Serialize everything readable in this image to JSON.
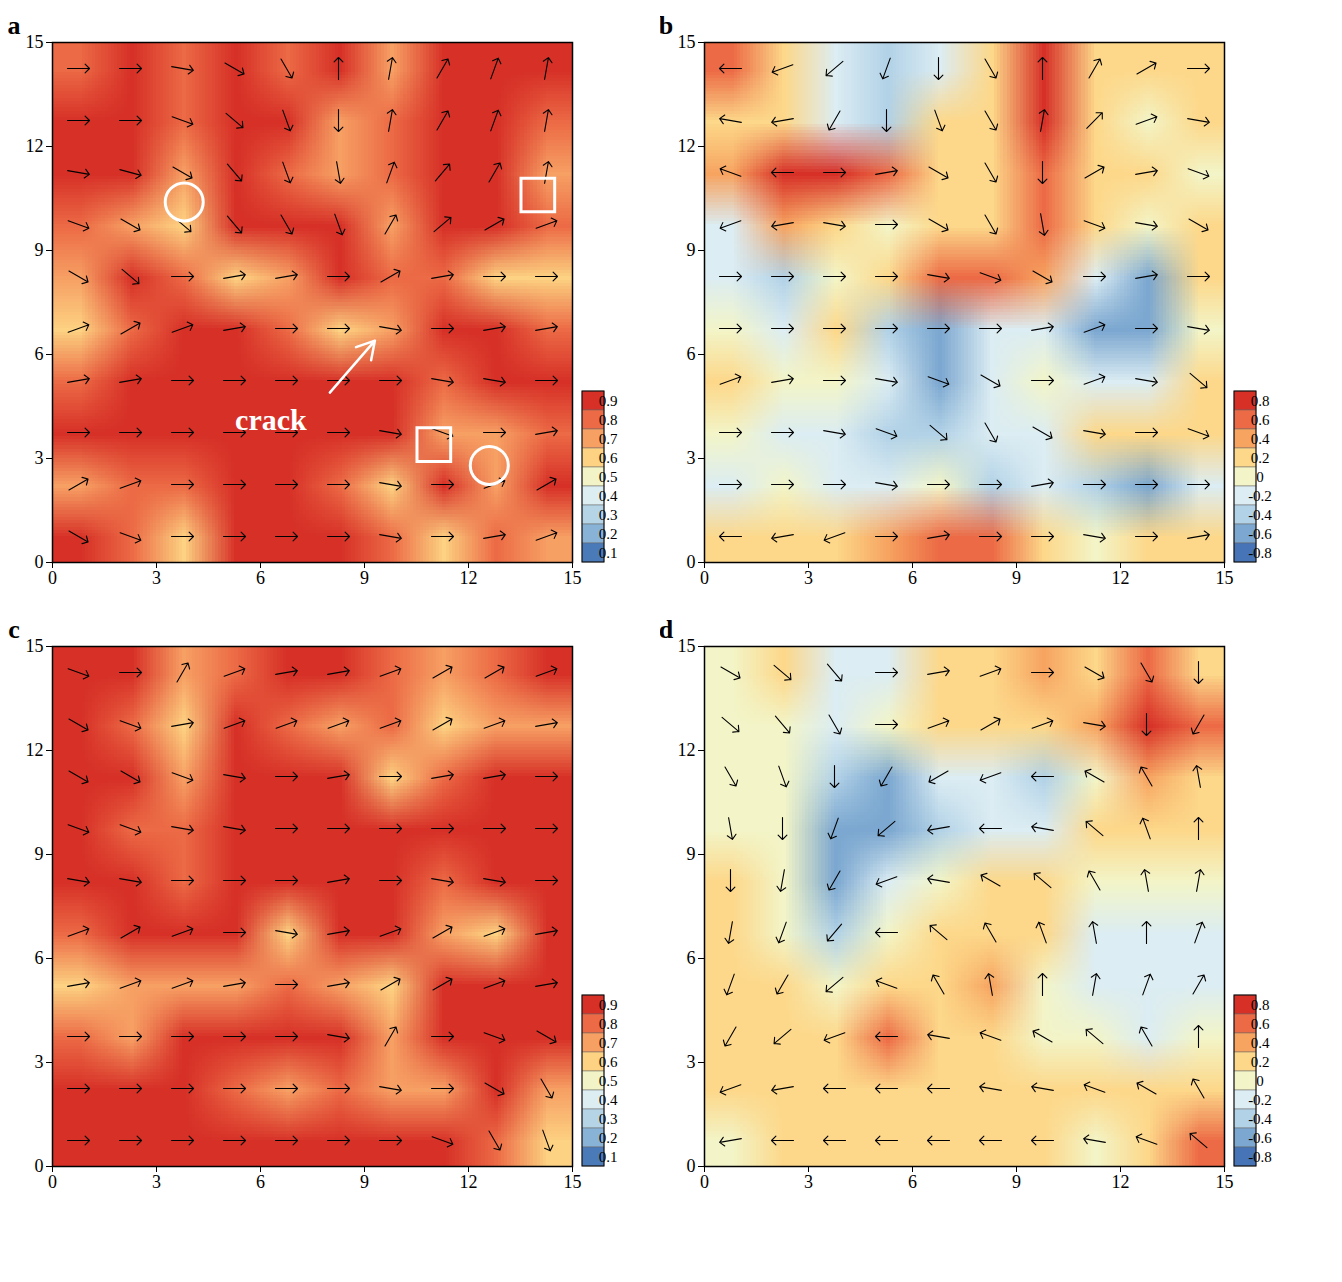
{
  "chart_data": [
    {
      "type": "heatmap",
      "title": "a",
      "xlim": [
        0,
        15
      ],
      "ylim": [
        0,
        15
      ],
      "xticks": [
        0,
        3,
        6,
        9,
        12,
        15
      ],
      "yticks": [
        0,
        3,
        6,
        9,
        12,
        15
      ],
      "colorbar": {
        "ticks": [
          0.1,
          0.2,
          0.3,
          0.4,
          0.5,
          0.6,
          0.7,
          0.8,
          0.9
        ],
        "colors": [
          "#4a7ab8",
          "#89b3d6",
          "#b5d4e6",
          "#ddeef2",
          "#f2f3c6",
          "#fdd282",
          "#f7a064",
          "#ec6a45",
          "#d73027"
        ]
      },
      "cells": [
        [
          0.8,
          0.95,
          0.75,
          0.9,
          0.75,
          0.9,
          0.7,
          0.95,
          0.9,
          0.9
        ],
        [
          0.95,
          0.9,
          0.85,
          0.95,
          0.95,
          0.7,
          0.8,
          0.95,
          0.95,
          0.8
        ],
        [
          0.9,
          0.95,
          0.7,
          0.95,
          0.8,
          0.7,
          0.75,
          0.95,
          0.9,
          0.65
        ],
        [
          0.8,
          0.65,
          0.6,
          0.9,
          0.9,
          0.95,
          0.7,
          0.9,
          0.95,
          0.75
        ],
        [
          0.7,
          0.9,
          0.75,
          0.6,
          0.7,
          0.95,
          0.8,
          0.75,
          0.6,
          0.6
        ],
        [
          0.6,
          0.85,
          0.95,
          0.95,
          0.75,
          0.55,
          0.7,
          0.95,
          0.9,
          0.85
        ],
        [
          0.8,
          0.95,
          0.95,
          0.95,
          0.95,
          0.95,
          0.95,
          0.8,
          0.95,
          0.9
        ],
        [
          0.95,
          0.95,
          0.95,
          0.9,
          0.95,
          0.95,
          0.95,
          0.7,
          0.65,
          0.8
        ],
        [
          0.7,
          0.85,
          0.75,
          0.95,
          0.95,
          0.8,
          0.6,
          0.9,
          0.7,
          0.9
        ],
        [
          0.95,
          0.8,
          0.6,
          0.95,
          0.9,
          0.95,
          0.75,
          0.6,
          0.85,
          0.7
        ]
      ],
      "vector_angles": [
        [
          0,
          0,
          350,
          330,
          300,
          90,
          80,
          60,
          70,
          80
        ],
        [
          0,
          0,
          340,
          320,
          290,
          270,
          80,
          60,
          70,
          80
        ],
        [
          350,
          345,
          330,
          310,
          290,
          280,
          70,
          50,
          60,
          80
        ],
        [
          340,
          330,
          320,
          310,
          300,
          290,
          60,
          40,
          30,
          20
        ],
        [
          330,
          320,
          0,
          10,
          10,
          0,
          30,
          10,
          0,
          0
        ],
        [
          20,
          30,
          20,
          10,
          0,
          0,
          350,
          0,
          10,
          10
        ],
        [
          10,
          10,
          0,
          0,
          0,
          0,
          0,
          350,
          350,
          0
        ],
        [
          0,
          0,
          0,
          0,
          0,
          0,
          350,
          340,
          0,
          10
        ],
        [
          30,
          20,
          0,
          0,
          0,
          0,
          350,
          0,
          20,
          30
        ],
        [
          330,
          340,
          0,
          0,
          0,
          0,
          350,
          0,
          10,
          20
        ]
      ],
      "annotations": [
        {
          "type": "circle",
          "x": 3.8,
          "y": 10.4
        },
        {
          "type": "circle",
          "x": 12.6,
          "y": 2.8
        },
        {
          "type": "square",
          "x": 14.0,
          "y": 10.6
        },
        {
          "type": "square",
          "x": 11.0,
          "y": 3.4
        },
        {
          "type": "text",
          "text": "crack",
          "x": 6.3,
          "y": 4.1,
          "arrow_from": [
            8.0,
            4.9
          ],
          "arrow_to": [
            9.3,
            6.4
          ]
        }
      ]
    },
    {
      "type": "heatmap",
      "title": "b",
      "xlim": [
        0,
        15
      ],
      "ylim": [
        0,
        15
      ],
      "xticks": [
        0,
        3,
        6,
        9,
        12,
        15
      ],
      "yticks": [
        0,
        3,
        6,
        9,
        12,
        15
      ],
      "colorbar": {
        "ticks": [
          -0.8,
          -0.6,
          -0.4,
          -0.2,
          0,
          0.2,
          0.4,
          0.6,
          0.8
        ],
        "colors": [
          "#4674b6",
          "#7ba7d0",
          "#b2d2e7",
          "#dcedf3",
          "#f3f5c8",
          "#fdd88a",
          "#f7a461",
          "#ec6a45",
          "#d73027"
        ]
      },
      "cells": [
        [
          0.6,
          0.2,
          -0.3,
          -0.4,
          -0.2,
          0.2,
          0.7,
          0.1,
          0.2,
          0.2
        ],
        [
          0.3,
          0.1,
          -0.2,
          -0.4,
          0.1,
          0.1,
          0.7,
          0.2,
          0.0,
          0.1
        ],
        [
          0.4,
          0.8,
          0.8,
          0.6,
          0.1,
          0.1,
          0.5,
          0.1,
          0.2,
          -0.1
        ],
        [
          -0.2,
          0.4,
          0.3,
          -0.1,
          0.2,
          0.3,
          0.6,
          0.1,
          0.0,
          0.3
        ],
        [
          -0.3,
          -0.4,
          -0.1,
          0.1,
          0.5,
          0.6,
          0.4,
          -0.3,
          -0.6,
          0.2
        ],
        [
          0.0,
          -0.2,
          0.1,
          -0.4,
          -0.7,
          -0.3,
          -0.2,
          -0.6,
          -0.7,
          0.0
        ],
        [
          0.1,
          -0.1,
          0.0,
          -0.3,
          -0.6,
          -0.3,
          -0.1,
          -0.3,
          -0.2,
          0.3
        ],
        [
          0.0,
          -0.2,
          -0.3,
          -0.5,
          -0.4,
          -0.2,
          -0.2,
          0.1,
          0.3,
          0.1
        ],
        [
          -0.2,
          -0.1,
          -0.3,
          -0.2,
          -0.1,
          -0.4,
          -0.3,
          -0.4,
          -0.6,
          -0.3
        ],
        [
          0.1,
          0.3,
          0.2,
          0.4,
          0.5,
          0.5,
          0.3,
          0.0,
          0.1,
          0.3
        ]
      ],
      "vector_angles": [
        [
          180,
          200,
          220,
          250,
          270,
          300,
          90,
          60,
          30,
          0
        ],
        [
          170,
          190,
          240,
          270,
          290,
          300,
          80,
          45,
          20,
          350
        ],
        [
          160,
          180,
          0,
          10,
          330,
          300,
          270,
          30,
          10,
          340
        ],
        [
          200,
          190,
          350,
          0,
          330,
          300,
          280,
          340,
          350,
          330
        ],
        [
          0,
          0,
          0,
          0,
          350,
          340,
          330,
          0,
          10,
          0
        ],
        [
          0,
          0,
          0,
          0,
          0,
          0,
          10,
          20,
          0,
          350
        ],
        [
          20,
          10,
          0,
          350,
          340,
          330,
          0,
          20,
          350,
          320
        ],
        [
          0,
          0,
          350,
          340,
          320,
          300,
          330,
          350,
          0,
          340
        ],
        [
          0,
          0,
          0,
          350,
          0,
          0,
          10,
          0,
          0,
          0
        ],
        [
          180,
          190,
          200,
          0,
          10,
          0,
          0,
          350,
          0,
          10
        ]
      ]
    },
    {
      "type": "heatmap",
      "title": "c",
      "xlim": [
        0,
        15
      ],
      "ylim": [
        0,
        15
      ],
      "xticks": [
        0,
        3,
        6,
        9,
        12,
        15
      ],
      "yticks": [
        0,
        3,
        6,
        9,
        12,
        15
      ],
      "colorbar": {
        "ticks": [
          0.1,
          0.2,
          0.3,
          0.4,
          0.5,
          0.6,
          0.7,
          0.8,
          0.9
        ],
        "colors": [
          "#4a7ab8",
          "#89b3d6",
          "#b5d4e6",
          "#ddeef2",
          "#f2f3c6",
          "#fdd282",
          "#f7a064",
          "#ec6a45",
          "#d73027"
        ]
      },
      "cells": [
        [
          0.95,
          0.9,
          0.7,
          0.8,
          0.95,
          0.9,
          0.85,
          0.7,
          0.75,
          0.9
        ],
        [
          0.95,
          0.8,
          0.6,
          0.95,
          0.75,
          0.7,
          0.8,
          0.6,
          0.7,
          0.65
        ],
        [
          0.9,
          0.95,
          0.7,
          0.95,
          0.95,
          0.9,
          0.6,
          0.85,
          0.95,
          0.95
        ],
        [
          0.95,
          0.8,
          0.75,
          0.95,
          0.95,
          0.9,
          0.95,
          0.95,
          0.95,
          0.95
        ],
        [
          0.95,
          0.95,
          0.8,
          0.95,
          0.95,
          0.9,
          0.95,
          0.8,
          0.9,
          0.95
        ],
        [
          0.8,
          0.95,
          0.9,
          0.95,
          0.6,
          0.95,
          0.95,
          0.7,
          0.6,
          0.95
        ],
        [
          0.6,
          0.65,
          0.7,
          0.7,
          0.8,
          0.7,
          0.6,
          0.95,
          0.95,
          0.9
        ],
        [
          0.8,
          0.7,
          0.95,
          0.95,
          0.95,
          0.95,
          0.65,
          0.95,
          0.95,
          0.95
        ],
        [
          0.95,
          0.95,
          0.95,
          0.8,
          0.7,
          0.8,
          0.7,
          0.7,
          0.9,
          0.7
        ],
        [
          0.95,
          0.95,
          0.95,
          0.95,
          0.95,
          0.95,
          0.95,
          0.95,
          0.85,
          0.6
        ]
      ],
      "vector_angles": [
        [
          340,
          0,
          60,
          20,
          10,
          10,
          20,
          30,
          30,
          20
        ],
        [
          330,
          340,
          10,
          20,
          20,
          20,
          20,
          30,
          20,
          10
        ],
        [
          330,
          330,
          340,
          350,
          0,
          10,
          0,
          10,
          10,
          0
        ],
        [
          340,
          340,
          350,
          350,
          0,
          0,
          0,
          0,
          0,
          0
        ],
        [
          350,
          350,
          0,
          0,
          0,
          10,
          0,
          350,
          350,
          0
        ],
        [
          20,
          30,
          20,
          0,
          350,
          10,
          20,
          30,
          20,
          10
        ],
        [
          10,
          20,
          20,
          10,
          0,
          10,
          30,
          30,
          20,
          10
        ],
        [
          0,
          0,
          0,
          0,
          0,
          350,
          60,
          0,
          340,
          330
        ],
        [
          0,
          0,
          0,
          0,
          0,
          0,
          350,
          0,
          330,
          300
        ],
        [
          0,
          0,
          0,
          0,
          0,
          0,
          0,
          340,
          300,
          290
        ]
      ]
    },
    {
      "type": "heatmap",
      "title": "d",
      "xlim": [
        0,
        15
      ],
      "ylim": [
        0,
        15
      ],
      "xticks": [
        0,
        3,
        6,
        9,
        12,
        15
      ],
      "yticks": [
        0,
        3,
        6,
        9,
        12,
        15
      ],
      "colorbar": {
        "ticks": [
          -0.8,
          -0.6,
          -0.4,
          -0.2,
          0,
          0.2,
          0.4,
          0.6,
          0.8
        ],
        "colors": [
          "#4674b6",
          "#7ba7d0",
          "#b2d2e7",
          "#dcedf3",
          "#f3f5c8",
          "#fdd88a",
          "#f7a461",
          "#ec6a45",
          "#d73027"
        ]
      },
      "cells": [
        [
          0.0,
          0.1,
          -0.3,
          -0.2,
          0.2,
          0.3,
          0.4,
          0.2,
          0.6,
          0.3
        ],
        [
          0.0,
          -0.1,
          -0.2,
          -0.1,
          0.2,
          0.3,
          0.1,
          0.4,
          0.8,
          0.5
        ],
        [
          0.0,
          -0.1,
          -0.4,
          -0.6,
          -0.3,
          -0.3,
          -0.4,
          0.0,
          0.4,
          0.2
        ],
        [
          0.0,
          0.0,
          -0.6,
          -0.6,
          -0.4,
          -0.2,
          -0.2,
          0.1,
          0.2,
          0.1
        ],
        [
          0.1,
          0.0,
          -0.6,
          -0.2,
          0.0,
          0.1,
          0.2,
          0.0,
          -0.1,
          0.0
        ],
        [
          0.1,
          -0.1,
          -0.5,
          0.0,
          0.1,
          0.3,
          0.3,
          -0.2,
          -0.2,
          -0.2
        ],
        [
          0.2,
          0.1,
          -0.1,
          0.1,
          0.2,
          0.4,
          -0.1,
          -0.2,
          -0.2,
          -0.3
        ],
        [
          0.2,
          0.2,
          0.1,
          0.5,
          0.2,
          0.2,
          0.0,
          -0.1,
          -0.2,
          0.0
        ],
        [
          0.1,
          0.2,
          0.3,
          0.2,
          0.3,
          0.2,
          0.2,
          0.1,
          0.1,
          0.2
        ],
        [
          0.0,
          0.1,
          0.1,
          0.1,
          0.1,
          0.1,
          0.1,
          0.0,
          0.2,
          0.5
        ]
      ],
      "vector_angles": [
        [
          330,
          320,
          310,
          0,
          10,
          20,
          0,
          330,
          300,
          270
        ],
        [
          320,
          310,
          300,
          0,
          20,
          30,
          20,
          350,
          270,
          240
        ],
        [
          300,
          290,
          270,
          240,
          210,
          200,
          180,
          150,
          120,
          100
        ],
        [
          280,
          270,
          250,
          220,
          190,
          180,
          170,
          140,
          110,
          90
        ],
        [
          270,
          260,
          240,
          200,
          170,
          150,
          140,
          120,
          100,
          80
        ],
        [
          260,
          250,
          230,
          180,
          140,
          120,
          110,
          100,
          90,
          70
        ],
        [
          250,
          240,
          220,
          160,
          120,
          100,
          90,
          80,
          70,
          60
        ],
        [
          240,
          220,
          200,
          180,
          170,
          160,
          150,
          140,
          120,
          90
        ],
        [
          200,
          190,
          180,
          180,
          180,
          170,
          170,
          160,
          150,
          120
        ],
        [
          190,
          180,
          180,
          180,
          180,
          180,
          180,
          170,
          160,
          140
        ]
      ]
    }
  ]
}
